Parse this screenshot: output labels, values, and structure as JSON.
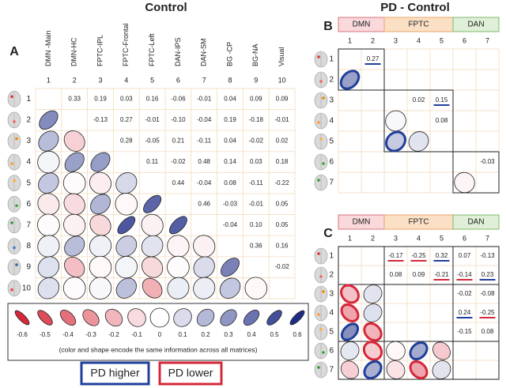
{
  "chart_data": [
    {
      "type": "corrplot",
      "panel": "A",
      "title": "Control",
      "labels": [
        "DMN -Main",
        "DMN-HC",
        "FPTC-IPL",
        "FPTC-Frontal",
        "FPTC-Left",
        "DAN-IPS",
        "DAN-SM",
        "BG -CP",
        "BG-NA",
        "Visual"
      ],
      "numbers": [
        1,
        2,
        3,
        4,
        5,
        6,
        7,
        8,
        9,
        10
      ],
      "values": [
        [
          null,
          0.33,
          0.19,
          0.03,
          0.16,
          -0.06,
          -0.01,
          0.04,
          0.09,
          0.09
        ],
        [
          null,
          null,
          -0.13,
          0.27,
          -0.01,
          -0.1,
          -0.04,
          0.19,
          -0.18,
          -0.01
        ],
        [
          null,
          null,
          null,
          0.28,
          -0.05,
          0.21,
          -0.11,
          0.04,
          -0.02,
          0.02
        ],
        [
          null,
          null,
          null,
          null,
          0.11,
          -0.02,
          0.48,
          0.14,
          0.03,
          0.18
        ],
        [
          null,
          null,
          null,
          null,
          null,
          0.44,
          -0.04,
          0.08,
          -0.11,
          -0.22
        ],
        [
          null,
          null,
          null,
          null,
          null,
          null,
          0.46,
          -0.03,
          -0.01,
          0.05
        ],
        [
          null,
          null,
          null,
          null,
          null,
          null,
          null,
          -0.04,
          0.1,
          0.05
        ],
        [
          null,
          null,
          null,
          null,
          null,
          null,
          null,
          null,
          0.36,
          0.16
        ],
        [
          null,
          null,
          null,
          null,
          null,
          null,
          null,
          null,
          null,
          -0.02
        ],
        [
          null,
          null,
          null,
          null,
          null,
          null,
          null,
          null,
          null,
          null
        ]
      ],
      "value_labels": [
        [
          null,
          "0.33",
          "0.19",
          "0.03",
          "0.16",
          "-0.06",
          "-0.01",
          "0.04",
          "0.09",
          "0.09"
        ],
        [
          null,
          null,
          "-0.13",
          "0.27",
          "-0.01",
          "-0.10",
          "-0.04",
          "0.19",
          "-0.18",
          "-0.01"
        ],
        [
          null,
          null,
          null,
          "0.28",
          "-0.05",
          "0.21",
          "-0.11",
          "0.04",
          "-0.02",
          "0.02"
        ],
        [
          null,
          null,
          null,
          null,
          "0.11",
          "-0.02",
          "0.48",
          "0.14",
          "0.03",
          "0.18"
        ],
        [
          null,
          null,
          null,
          null,
          null,
          "0.44",
          "-0.04",
          "0.08",
          "-0.11",
          "-0.22"
        ],
        [
          null,
          null,
          null,
          null,
          null,
          null,
          "0.46",
          "-0.03",
          "-0.01",
          "0.05"
        ],
        [
          null,
          null,
          null,
          null,
          null,
          null,
          null,
          "-0.04",
          "0.10",
          "0.05"
        ],
        [
          null,
          null,
          null,
          null,
          null,
          null,
          null,
          null,
          "0.36",
          "0.16"
        ],
        [
          null,
          null,
          null,
          null,
          null,
          null,
          null,
          null,
          null,
          "-0.02"
        ],
        [
          null,
          null,
          null,
          null,
          null,
          null,
          null,
          null,
          null,
          null
        ]
      ]
    },
    {
      "type": "corrplot",
      "panel": "B",
      "title": "PD - Control",
      "groups": [
        {
          "name": "DMN",
          "size": 2,
          "color": "#f9d9dc",
          "border": "#d9747f"
        },
        {
          "name": "FPTC",
          "size": 3,
          "color": "#fbe0c6",
          "border": "#e9a56a"
        },
        {
          "name": "DAN",
          "size": 2,
          "color": "#e0f0d8",
          "border": "#7fb86a"
        }
      ],
      "block_outline": "diagonal",
      "numbers": [
        1,
        2,
        3,
        4,
        5,
        6,
        7
      ],
      "values": [
        [
          null,
          0.27,
          null,
          null,
          null,
          null,
          null
        ],
        [
          null,
          null,
          null,
          null,
          null,
          null,
          null
        ],
        [
          null,
          null,
          null,
          0.02,
          0.15,
          null,
          null
        ],
        [
          null,
          null,
          null,
          null,
          0.08,
          null,
          null
        ],
        [
          null,
          null,
          null,
          null,
          null,
          null,
          null
        ],
        [
          null,
          null,
          null,
          null,
          null,
          null,
          -0.03
        ],
        [
          null,
          null,
          null,
          null,
          null,
          null,
          null
        ]
      ],
      "significant": [
        [
          0,
          1
        ],
        [
          2,
          4
        ]
      ]
    },
    {
      "type": "corrplot",
      "panel": "C",
      "groups": [
        {
          "name": "DMN",
          "size": 2,
          "color": "#f9d9dc",
          "border": "#d9747f"
        },
        {
          "name": "FPTC",
          "size": 3,
          "color": "#fbe0c6",
          "border": "#e9a56a"
        },
        {
          "name": "DAN",
          "size": 2,
          "color": "#e0f0d8",
          "border": "#7fb86a"
        }
      ],
      "block_outline": "grid",
      "numbers": [
        1,
        2,
        3,
        4,
        5,
        6,
        7
      ],
      "values": [
        [
          null,
          null,
          -0.17,
          -0.25,
          0.32,
          0.07,
          -0.13
        ],
        [
          null,
          null,
          0.08,
          0.09,
          -0.21,
          -0.14,
          0.23
        ],
        [
          null,
          null,
          null,
          null,
          null,
          -0.02,
          -0.08
        ],
        [
          null,
          null,
          null,
          null,
          null,
          0.24,
          -0.25
        ],
        [
          null,
          null,
          null,
          null,
          null,
          -0.15,
          0.08
        ],
        [
          null,
          null,
          null,
          null,
          null,
          null,
          null
        ],
        [
          null,
          null,
          null,
          null,
          null,
          null,
          null
        ]
      ],
      "significant": [
        [
          0,
          2
        ],
        [
          0,
          3
        ],
        [
          0,
          4
        ],
        [
          1,
          4
        ],
        [
          1,
          5
        ],
        [
          1,
          6
        ],
        [
          3,
          5
        ],
        [
          3,
          6
        ]
      ]
    }
  ],
  "legend": {
    "ticks": [
      -0.6,
      -0.5,
      -0.4,
      -0.3,
      -0.2,
      -0.1,
      0,
      0.1,
      0.2,
      0.3,
      0.4,
      0.5,
      0.6
    ],
    "caption": "(color and shape encode the same information across all matrices)",
    "pd_higher": "PD higher",
    "pd_lower": "PD lower"
  }
}
